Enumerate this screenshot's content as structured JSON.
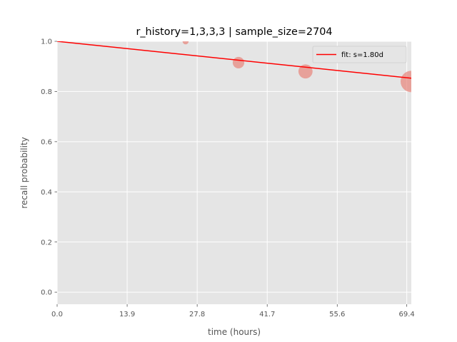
{
  "chart_data": {
    "type": "scatter",
    "title": "r_history=1,3,3,3 | sample_size=2704",
    "xlabel": "time (hours)",
    "ylabel": "recall probability",
    "xlim": [
      0,
      70.3
    ],
    "ylim": [
      -0.048,
      1.0
    ],
    "x_ticks": [
      0.0,
      13.9,
      27.8,
      41.7,
      55.6,
      69.4
    ],
    "x_tick_labels": [
      "0.0",
      "13.9",
      "27.8",
      "41.7",
      "55.6",
      "69.4"
    ],
    "y_ticks": [
      0.0,
      0.2,
      0.4,
      0.6,
      0.8,
      1.0
    ],
    "y_tick_labels": [
      "0.0",
      "0.2",
      "0.4",
      "0.6",
      "0.8",
      "1.0"
    ],
    "grid": true,
    "background": "#e5e5e5",
    "legend_position": "top-right",
    "series": [
      {
        "kind": "scatter",
        "color": "#e8857a",
        "points": [
          {
            "x": 25.5,
            "y": 1.0,
            "weight": 0.02
          },
          {
            "x": 36.0,
            "y": 0.915,
            "weight": 0.2
          },
          {
            "x": 49.3,
            "y": 0.88,
            "weight": 0.35
          },
          {
            "x": 70.3,
            "y": 0.84,
            "weight": 1.0
          }
        ]
      },
      {
        "kind": "line",
        "name": "fit: s=1.80d",
        "color": "#ff0000",
        "x": [
          0,
          70.3
        ],
        "y": [
          1.0,
          0.853
        ]
      }
    ]
  }
}
